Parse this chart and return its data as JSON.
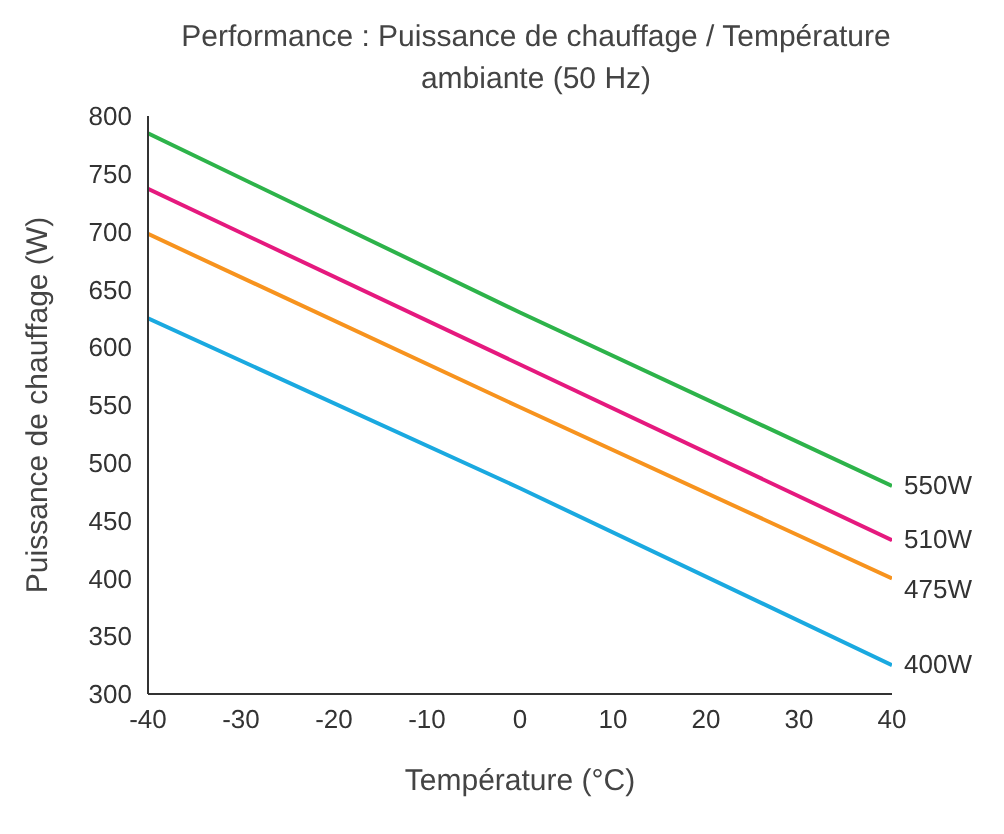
{
  "chart_data": {
    "type": "line",
    "title": "Performance : Puissance de chauffage / Température ambiante (50 Hz)",
    "xlabel": "Température (°C)",
    "ylabel": "Puissance de chauffage (W)",
    "x": [
      -40,
      0,
      40
    ],
    "series": [
      {
        "name": "550W",
        "color": "#2db34a",
        "values": [
          785,
          630,
          480
        ]
      },
      {
        "name": "510W",
        "color": "#e5197e",
        "values": [
          737,
          585,
          433
        ]
      },
      {
        "name": "475W",
        "color": "#f7931e",
        "values": [
          698,
          548,
          400
        ]
      },
      {
        "name": "400W",
        "color": "#1aa9e0",
        "values": [
          625,
          478,
          325
        ]
      }
    ],
    "xlim": [
      -40,
      40
    ],
    "xticks": [
      -40,
      -30,
      -20,
      -10,
      0,
      10,
      20,
      30,
      40
    ],
    "ylim": [
      300,
      800
    ],
    "yticks": [
      300,
      350,
      400,
      450,
      500,
      550,
      600,
      650,
      700,
      750,
      800
    ],
    "grid": false,
    "legend": false,
    "marker": "none",
    "line_style": "solid"
  }
}
